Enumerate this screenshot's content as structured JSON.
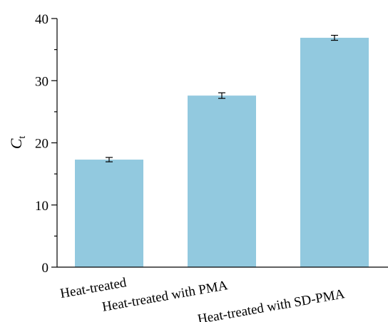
{
  "chart_data": {
    "type": "bar",
    "categories": [
      "Heat-treated",
      "Heat-treated with PMA",
      "Heat-treated with SD-PMA"
    ],
    "values": [
      17.3,
      27.6,
      36.9
    ],
    "errors": [
      0.35,
      0.45,
      0.4
    ],
    "ylabel": "C",
    "ylabel_subscript": "t",
    "ylim": [
      0,
      40
    ],
    "yticks": [
      "0",
      "10",
      "20",
      "30",
      "40"
    ],
    "grid": false,
    "bar_color": "#92c9df",
    "legend": "none"
  }
}
